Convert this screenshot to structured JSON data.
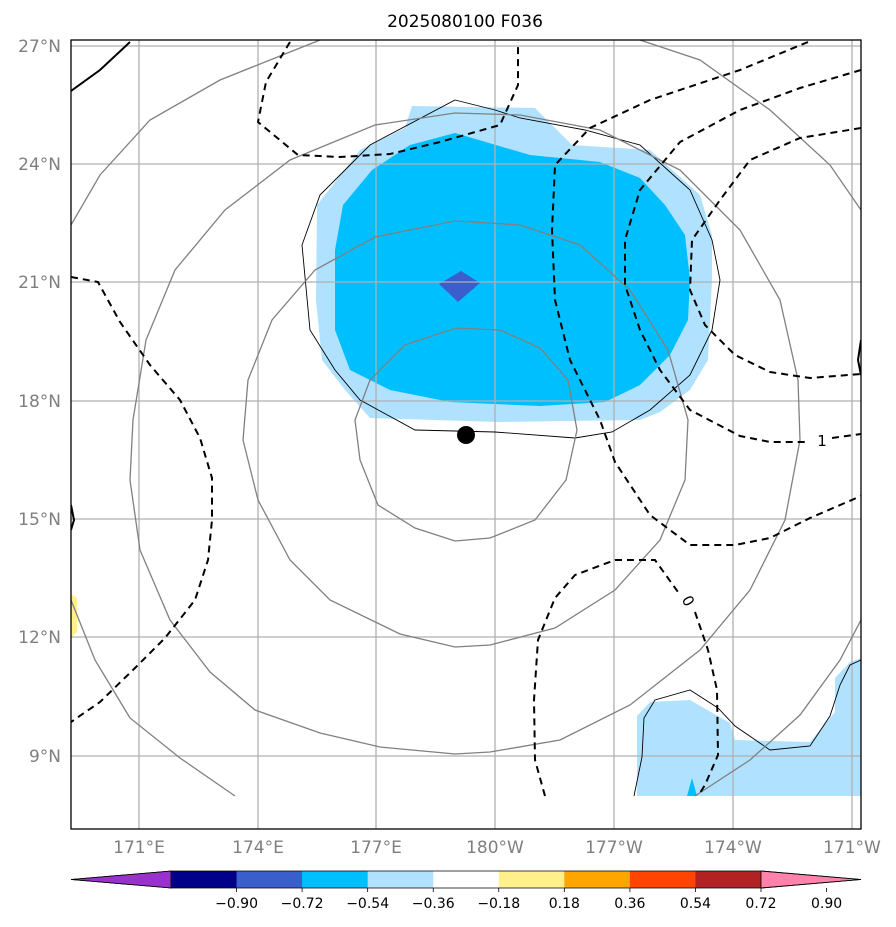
{
  "chart_data": {
    "type": "heatmap",
    "title": "2025080100 F036",
    "map": {
      "lon_range": [
        169.7,
        188.7
      ],
      "lat_range": [
        7.2,
        27.2
      ],
      "x_ticks": [
        {
          "lon": 171,
          "label": "171°E"
        },
        {
          "lon": 174,
          "label": "174°E"
        },
        {
          "lon": 177,
          "label": "177°E"
        },
        {
          "lon": 180,
          "label": "180°W"
        },
        {
          "lon": 183,
          "label": "177°W"
        },
        {
          "lon": 186,
          "label": "174°W"
        },
        {
          "lon": 189,
          "label": "171°W"
        }
      ],
      "y_ticks": [
        {
          "lat": 27,
          "label": "27°N"
        },
        {
          "lat": 24,
          "label": "24°N"
        },
        {
          "lat": 21,
          "label": "21°N"
        },
        {
          "lat": 18,
          "label": "18°N"
        },
        {
          "lat": 15,
          "label": "15°N"
        },
        {
          "lat": 12,
          "label": "12°N"
        },
        {
          "lat": 9,
          "label": "9°N"
        }
      ],
      "grid": true,
      "storm_center": {
        "lon": 179.3,
        "lat": 17.1
      }
    },
    "colorbar": {
      "levels": [
        "−0.90",
        "−0.72",
        "−0.54",
        "−0.36",
        "−0.18",
        "0.18",
        "0.36",
        "0.54",
        "0.72",
        "0.90"
      ],
      "colors": [
        "#9932cc",
        "#00008b",
        "#3a5fcd",
        "#00bfff",
        "#b0e2ff",
        "#ffffff",
        "#fff08c",
        "#ffa500",
        "#ff4500",
        "#b22222",
        "#ff82ab"
      ],
      "extend": "both"
    },
    "filled_regions": [
      {
        "level": "-0.18 to -0.36",
        "color": "#b0e2ff",
        "area": "north of storm center, approx 175.5E-184.5E, 17.5N-24.5N"
      },
      {
        "level": "-0.36 to -0.54",
        "color": "#00bfff",
        "area": "core approx 176E-184E, 18N-24N"
      },
      {
        "level": "-0.54 to -0.72",
        "color": "#3a5fcd",
        "area": "small patch near 178.5E-179.5E, 20.5N-21.2N"
      },
      {
        "level": "-0.18 to -0.36",
        "color": "#b0e2ff",
        "area": "southeast corner approx 183.5E-188.7E, 8N-11N"
      },
      {
        "level": "0.18 to 0.36",
        "color": "#fff08c",
        "area": "left edge near 12-13N"
      }
    ],
    "contour_labels": [
      "0",
      "1"
    ]
  }
}
